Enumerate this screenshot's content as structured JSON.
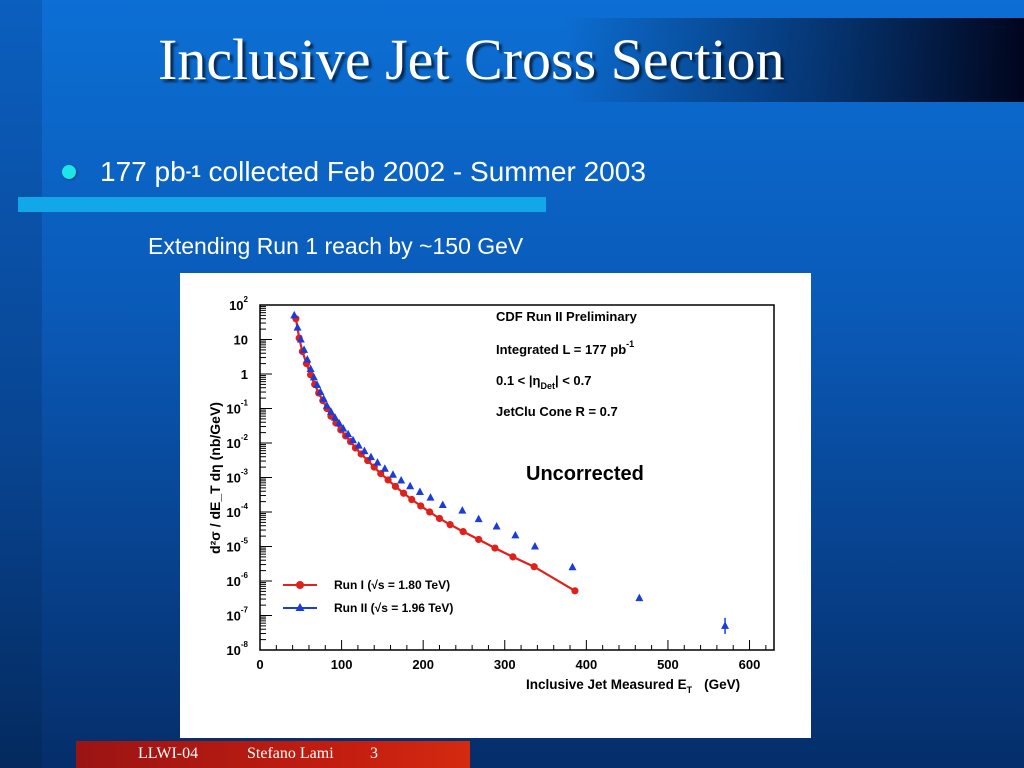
{
  "slide": {
    "title": "Inclusive Jet Cross Section",
    "bullet": {
      "pre": "177 pb",
      "sup": "-1",
      "post": " collected Feb 2002 - Summer 2003"
    },
    "subtext": "Extending Run 1 reach by ~150 GeV",
    "footer": {
      "left": "LLWI-04",
      "author": "Stefano Lami",
      "page": "3"
    },
    "colors": {
      "bullet": "#1ee6e6",
      "cyan_bar": "#12a7e8",
      "footer": "#c41e10"
    }
  },
  "chart_data": {
    "type": "scatter",
    "ylog": true,
    "xlim": [
      0,
      630
    ],
    "ylim_exp": [
      -8,
      2
    ],
    "x_ticks": [
      0,
      100,
      200,
      300,
      400,
      500,
      600
    ],
    "y_ticks_exp": [
      -8,
      -7,
      -6,
      -5,
      -4,
      -3,
      -2,
      -1,
      0,
      1,
      2
    ],
    "xlabel": {
      "main": "Inclusive Jet Measured E",
      "sub": "T",
      "units": "(GeV)"
    },
    "ylabel": "d²σ / dE_T dη   (nb/GeV)",
    "info_lines": [
      {
        "text": "CDF Run II Preliminary"
      },
      {
        "text": "Integrated L = 177 pb",
        "sup": "-1"
      },
      {
        "pre": "0.1 < |η",
        "sub": "Det",
        "post": "| < 0.7"
      },
      {
        "text": "JetClu Cone R = 0.7"
      }
    ],
    "annotation": "Uncorrected",
    "legend": [
      {
        "name": "Run I",
        "sqrt_label": "(√s = 1.80 TeV)",
        "color": "#e0201a",
        "marker": "circle"
      },
      {
        "name": "Run II",
        "sqrt_label": "(√s = 1.96 TeV)",
        "color": "#1a3cd8",
        "marker": "triangle"
      }
    ],
    "series": [
      {
        "name": "Run I",
        "color": "#e0201a",
        "marker": "circle",
        "x": [
          44,
          48,
          52,
          57,
          62,
          67,
          72,
          77,
          82,
          87,
          93,
          99,
          105,
          111,
          117,
          124,
          132,
          140,
          148,
          157,
          166,
          176,
          186,
          197,
          208,
          220,
          233,
          249,
          268,
          288,
          310,
          336,
          386
        ],
        "y": [
          40,
          11,
          4.5,
          2,
          0.95,
          0.5,
          0.28,
          0.17,
          0.1,
          0.06,
          0.038,
          0.024,
          0.016,
          0.011,
          0.0072,
          0.0048,
          0.0031,
          0.002,
          0.0013,
          0.00085,
          0.00055,
          0.00035,
          0.00023,
          0.00015,
          0.0001,
          6.5e-05,
          4.3e-05,
          2.7e-05,
          1.6e-05,
          9e-06,
          5e-06,
          2.6e-06,
          5.2e-07
        ]
      },
      {
        "name": "Run II",
        "color": "#1a3cd8",
        "marker": "triangle",
        "x": [
          42,
          46,
          50,
          54,
          58,
          62,
          66,
          70,
          74,
          78,
          82,
          87,
          92,
          97,
          102,
          108,
          114,
          121,
          128,
          136,
          144,
          153,
          163,
          173,
          184,
          196,
          209,
          224,
          248,
          268,
          290,
          313,
          337,
          383,
          465,
          570
        ],
        "y": [
          50,
          22,
          10,
          5,
          2.6,
          1.4,
          0.8,
          0.48,
          0.3,
          0.19,
          0.12,
          0.08,
          0.054,
          0.037,
          0.026,
          0.018,
          0.012,
          0.0084,
          0.0058,
          0.0039,
          0.0027,
          0.0018,
          0.0012,
          0.00082,
          0.00056,
          0.00038,
          0.00026,
          0.00016,
          0.00011,
          6.2e-05,
          3.8e-05,
          2.1e-05,
          1e-05,
          2.5e-06,
          3.2e-07,
          5e-08
        ]
      }
    ]
  }
}
